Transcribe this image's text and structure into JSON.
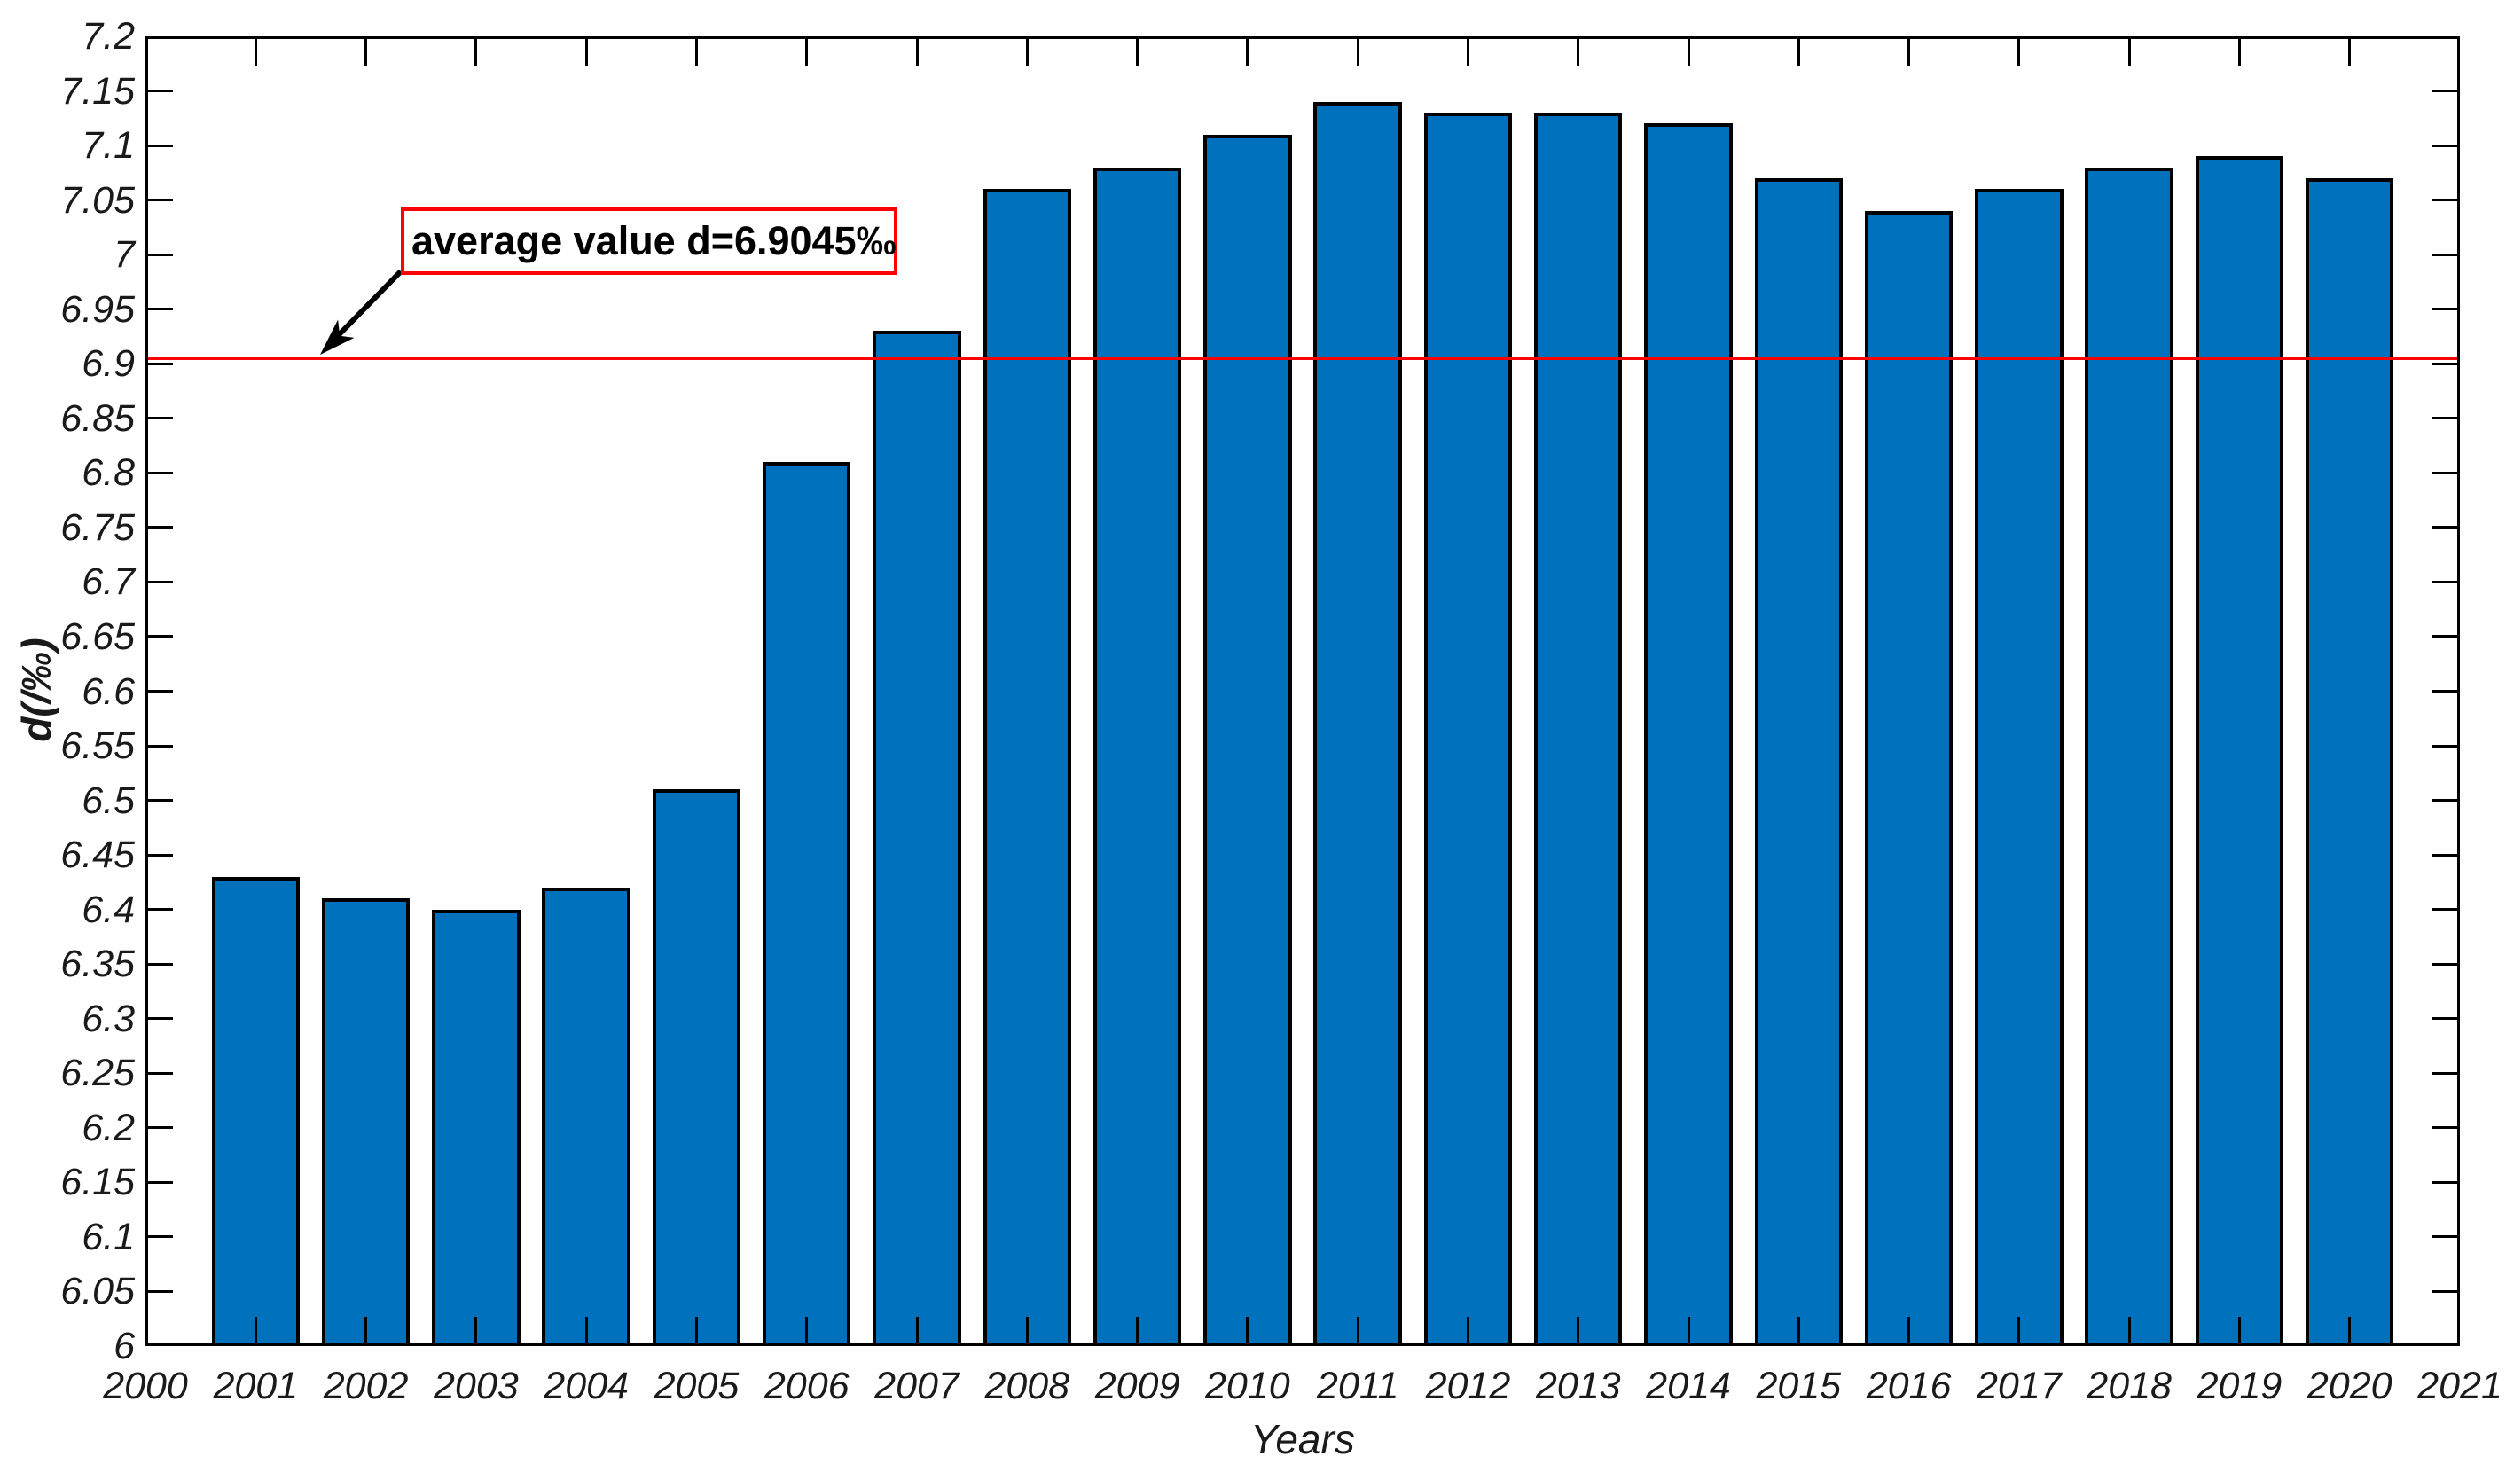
{
  "page": {
    "background": "#ffffff"
  },
  "chart_data": {
    "type": "bar",
    "title": "",
    "xlabel": "Years",
    "ylabel": "d(/‰)",
    "categories": [
      2001,
      2002,
      2003,
      2004,
      2005,
      2006,
      2007,
      2008,
      2009,
      2010,
      2011,
      2012,
      2013,
      2014,
      2015,
      2016,
      2017,
      2018,
      2019,
      2020
    ],
    "values": [
      6.43,
      6.41,
      6.4,
      6.42,
      6.51,
      6.81,
      6.93,
      7.06,
      7.08,
      7.11,
      7.14,
      7.13,
      7.13,
      7.12,
      7.07,
      7.04,
      7.06,
      7.08,
      7.09,
      7.07
    ],
    "xlim": [
      2000,
      2021
    ],
    "ylim": [
      6,
      7.2
    ],
    "bar_width_fraction": 0.8,
    "grid": false,
    "legend": null,
    "x_tick_values": [
      2000,
      2001,
      2002,
      2003,
      2004,
      2005,
      2006,
      2007,
      2008,
      2009,
      2010,
      2011,
      2012,
      2013,
      2014,
      2015,
      2016,
      2017,
      2018,
      2019,
      2020,
      2021
    ],
    "x_tick_labels": [
      "2000",
      "2001",
      "2002",
      "2003",
      "2004",
      "2005",
      "2006",
      "2007",
      "2008",
      "2009",
      "2010",
      "2011",
      "2012",
      "2013",
      "2014",
      "2015",
      "2016",
      "2017",
      "2018",
      "2019",
      "2020",
      "2021"
    ],
    "y_tick_values": [
      6,
      6.05,
      6.1,
      6.15,
      6.2,
      6.25,
      6.3,
      6.35,
      6.4,
      6.45,
      6.5,
      6.55,
      6.6,
      6.65,
      6.7,
      6.75,
      6.8,
      6.85,
      6.9,
      6.95,
      7,
      7.05,
      7.1,
      7.15,
      7.2
    ],
    "y_tick_labels": [
      "6",
      "6.05",
      "6.1",
      "6.15",
      "6.2",
      "6.25",
      "6.3",
      "6.35",
      "6.4",
      "6.45",
      "6.5",
      "6.55",
      "6.6",
      "6.65",
      "6.7",
      "6.75",
      "6.8",
      "6.85",
      "6.9",
      "6.95",
      "7",
      "7.05",
      "7.1",
      "7.15",
      "7.2"
    ],
    "average_line": {
      "value": 6.9045,
      "annotation": "average value d=6.9045‰",
      "line_color": "#ff0000"
    },
    "colors": {
      "bar_fill": "#0072BD",
      "bar_edge": "#000000",
      "axis": "#000000",
      "tick_label": "#1a1a1a",
      "annotation_border": "#ff0000",
      "annotation_text": "#000000",
      "arrow": "#000000",
      "background": "#ffffff"
    }
  }
}
